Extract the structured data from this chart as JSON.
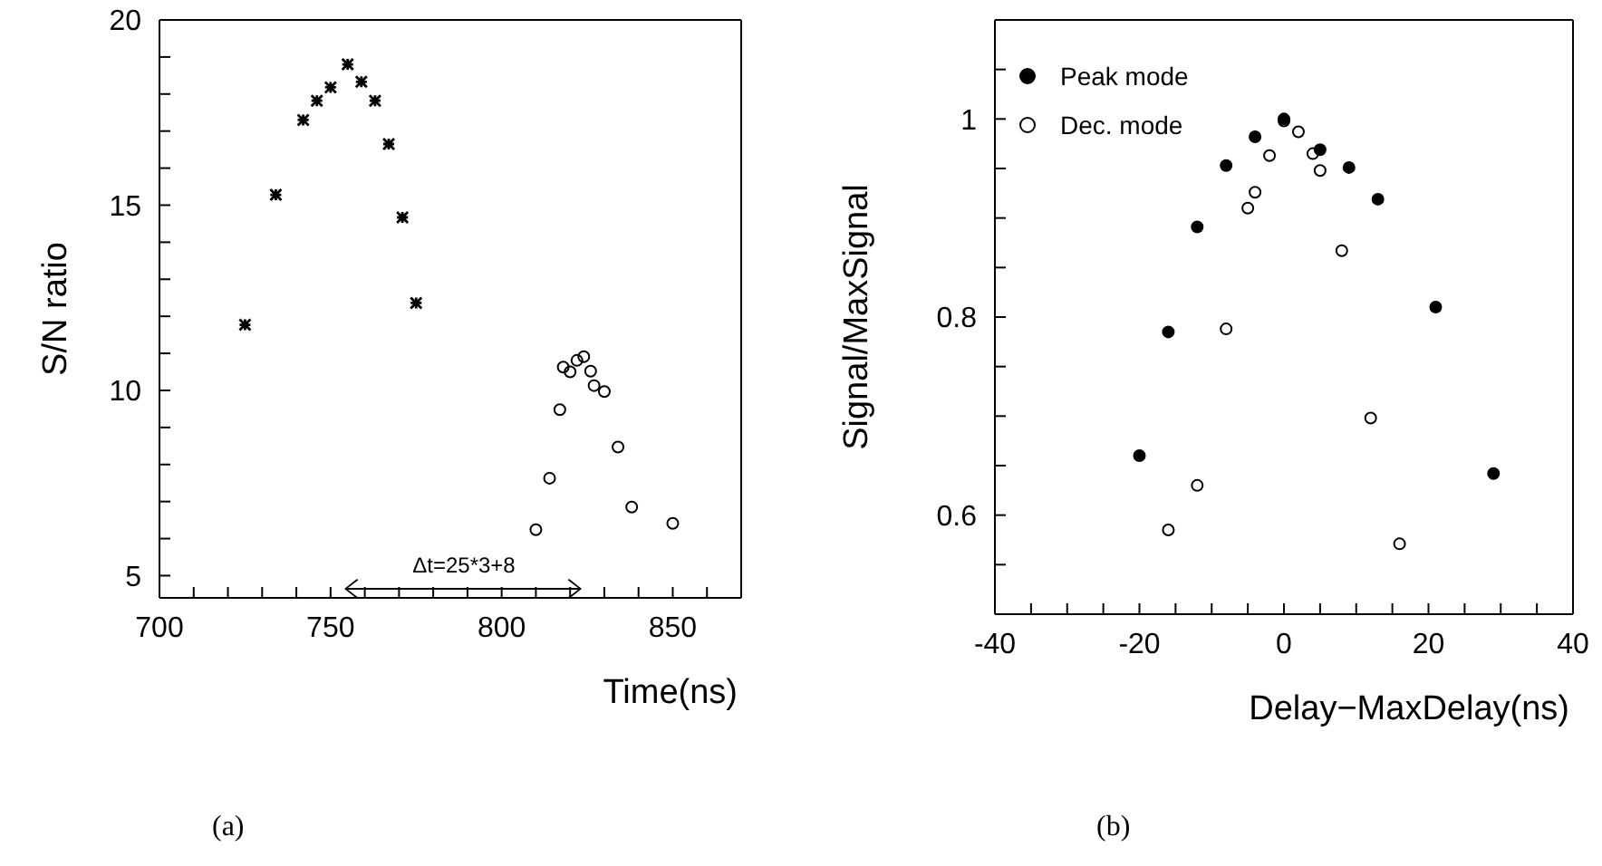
{
  "chart_data": [
    {
      "type": "scatter",
      "xlabel": "Time(ns)",
      "ylabel": "S/N ratio",
      "xlim": [
        700,
        870
      ],
      "ylim": [
        4.4,
        20
      ],
      "xticks": [
        700,
        {
          "value": 710,
          "label": null
        },
        {
          "value": 720,
          "label": null
        },
        {
          "value": 730,
          "label": null
        },
        {
          "value": 740,
          "label": null
        },
        750,
        {
          "value": 760,
          "label": null
        },
        {
          "value": 770,
          "label": null
        },
        {
          "value": 780,
          "label": null
        },
        {
          "value": 790,
          "label": null
        },
        800,
        {
          "value": 810,
          "label": null
        },
        {
          "value": 820,
          "label": null
        },
        {
          "value": 830,
          "label": null
        },
        {
          "value": 840,
          "label": null
        },
        850,
        {
          "value": 860,
          "label": null
        }
      ],
      "yticks": [
        5,
        {
          "value": 6,
          "label": null
        },
        {
          "value": 7,
          "label": null
        },
        {
          "value": 8,
          "label": null
        },
        {
          "value": 9,
          "label": null
        },
        10,
        {
          "value": 11,
          "label": null
        },
        {
          "value": 12,
          "label": null
        },
        {
          "value": 13,
          "label": null
        },
        {
          "value": 14,
          "label": null
        },
        15,
        {
          "value": 16,
          "label": null
        },
        {
          "value": 17,
          "label": null
        },
        {
          "value": 18,
          "label": null
        },
        {
          "value": 19,
          "label": null
        },
        20
      ],
      "grid": false,
      "legend": false,
      "series": [
        {
          "color": "#000000",
          "marker": "cross",
          "x": [
            725,
            734,
            742,
            746,
            750,
            755,
            759,
            763,
            767,
            771,
            775
          ],
          "values": [
            11.77,
            15.28,
            17.3,
            17.82,
            18.18,
            18.8,
            18.33,
            17.82,
            16.65,
            14.67,
            12.36
          ]
        },
        {
          "color": "#000000",
          "marker": "circle",
          "x": [
            810,
            814,
            817,
            818,
            820,
            822,
            824,
            826,
            827,
            830,
            834,
            838,
            850
          ],
          "values": [
            6.24,
            7.63,
            9.48,
            10.63,
            10.5,
            10.81,
            10.91,
            10.52,
            10.13,
            9.97,
            8.47,
            6.85,
            6.41
          ]
        }
      ],
      "annotations": [
        "Δt=25*3+8",
        "(a)"
      ]
    },
    {
      "type": "scatter",
      "xlabel": "Delay−MaxDelay(ns)",
      "ylabel": "Signal/MaxSignal",
      "xlim": [
        -40,
        40
      ],
      "ylim": [
        0.5,
        1.1
      ],
      "xticks": [
        -40,
        {
          "value": -35,
          "label": null
        },
        {
          "value": -30,
          "label": null
        },
        {
          "value": -25,
          "label": null
        },
        -20,
        {
          "value": -15,
          "label": null
        },
        {
          "value": -10,
          "label": null
        },
        {
          "value": -5,
          "label": null
        },
        0,
        {
          "value": 5,
          "label": null
        },
        {
          "value": 10,
          "label": null
        },
        {
          "value": 15,
          "label": null
        },
        20,
        {
          "value": 25,
          "label": null
        },
        {
          "value": 30,
          "label": null
        },
        {
          "value": 35,
          "label": null
        },
        40
      ],
      "yticks": [
        {
          "value": 0.55,
          "label": null
        },
        0.6,
        {
          "value": 0.65,
          "label": null
        },
        {
          "value": 0.7,
          "label": null
        },
        {
          "value": 0.75,
          "label": null
        },
        0.8,
        {
          "value": 0.85,
          "label": null
        },
        {
          "value": 0.9,
          "label": null
        },
        {
          "value": 0.95,
          "label": null
        },
        1,
        {
          "value": 1.05,
          "label": null
        }
      ],
      "grid": false,
      "legend": "top left",
      "series": [
        {
          "name": "Peak mode",
          "color": "#000000",
          "marker": "circle",
          "x": [
            -20,
            -16,
            -12,
            -8,
            -4,
            0,
            5,
            9,
            13,
            21,
            29
          ],
          "values": [
            0.66,
            0.785,
            0.891,
            0.953,
            0.982,
            1.0,
            0.969,
            0.951,
            0.919,
            0.81,
            0.642
          ]
        },
        {
          "name": "Dec. mode",
          "color": "#000000",
          "marker": "circle",
          "x": [
            -16,
            -12,
            -8,
            -5,
            -4,
            -2,
            0,
            2,
            4,
            5,
            8,
            12,
            16
          ],
          "values": [
            0.585,
            0.63,
            0.788,
            0.91,
            0.926,
            0.963,
            0.998,
            0.987,
            0.965,
            0.948,
            0.867,
            0.698,
            0.571
          ]
        }
      ],
      "annotations": [
        "(b)"
      ]
    }
  ]
}
